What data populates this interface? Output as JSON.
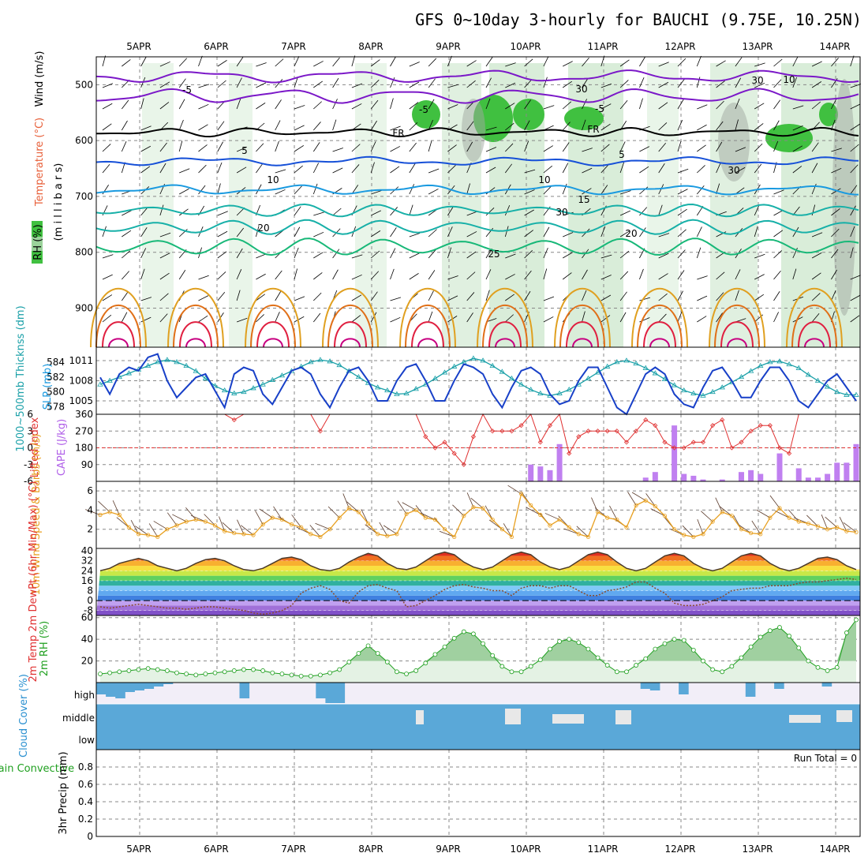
{
  "title": "GFS 0~10day 3-hourly for BAUCHI (9.75E, 10.25N)",
  "run_total": "Run Total = 0",
  "colors": {
    "purple": "#7b18c8",
    "black": "#000000",
    "blue": "#1650d8",
    "skyblue": "#1a9ae0",
    "teal": "#17b0a8",
    "green": "#18b878",
    "orange": "#e0a020",
    "darkorange": "#e07018",
    "red": "#e02040",
    "magenta": "#c80080",
    "rh_light": "#e4f2e4",
    "rh_mid": "#b0d8b0",
    "rh_dark": "#40c040"
  },
  "chart_data": [
    {
      "panel": "upper-air",
      "type": "contour",
      "x_dates": [
        "5APR",
        "6APR",
        "7APR",
        "8APR",
        "9APR",
        "10APR",
        "11APR",
        "12APR",
        "13APR",
        "14APR"
      ],
      "yticks": [
        500,
        600,
        700,
        800,
        900
      ],
      "ylim": [
        450,
        970
      ],
      "ylabel_text": "(m i l l i b a r s)",
      "legend_wind": "Wind (m/s)",
      "legend_temp": "Temperature (°C)",
      "legend_rh": "RH (%)",
      "contour_labels": [
        {
          "text": "-5",
          "color": "purple"
        },
        {
          "text": "-5",
          "color": "purple"
        },
        {
          "text": "-5",
          "color": "purple"
        },
        {
          "text": "FR",
          "color": "black"
        },
        {
          "text": "FR",
          "color": "black"
        },
        {
          "text": "5",
          "color": "blue"
        },
        {
          "text": "5",
          "color": "blue"
        },
        {
          "text": "10",
          "color": "skyblue"
        },
        {
          "text": "10",
          "color": "skyblue"
        },
        {
          "text": "15",
          "color": "teal"
        },
        {
          "text": "20",
          "color": "green"
        },
        {
          "text": "20",
          "color": "green"
        },
        {
          "text": "25",
          "color": "orange"
        },
        {
          "text": "30",
          "color": "gray"
        },
        {
          "text": "30",
          "color": "gray"
        },
        {
          "text": "30",
          "color": "gray"
        },
        {
          "text": "30",
          "color": "gray"
        },
        {
          "text": "10",
          "color": "gray"
        }
      ]
    },
    {
      "panel": "slp-thickness",
      "type": "line",
      "ylabel_left": "1000~500mb Thicknss (dm)",
      "ylabel_right": "SLP (mb)",
      "yticks_left": [
        578,
        580,
        582,
        584
      ],
      "yticks_right": [
        1005,
        1008,
        1011
      ],
      "ylim_thickness": [
        577,
        586
      ],
      "ylim_slp": [
        1003,
        1013
      ],
      "thickness": [
        581,
        581.5,
        582,
        582.5,
        583,
        583.5,
        584,
        584.3,
        584,
        583.5,
        582.8,
        581.8,
        580.8,
        580.2,
        579.8,
        580,
        580.5,
        581,
        581.6,
        582.2,
        582.8,
        583.4,
        584,
        584.3,
        584.1,
        583.6,
        582.8,
        582,
        581.2,
        580.6,
        580.2,
        579.7,
        579.8,
        580.4,
        581,
        581.8,
        582.6,
        583.4,
        584,
        584.5,
        584.2,
        583.5,
        582.7,
        581.8,
        581,
        580.3,
        579.8,
        579.5,
        579.8,
        580.3,
        581,
        581.8,
        582.6,
        583.4,
        584,
        584.2,
        583.8,
        583.2,
        582.5,
        581.7,
        580.9,
        580.2,
        579.8,
        579.5,
        580,
        580.6,
        581.3,
        582,
        582.8,
        583.5,
        584,
        584.1,
        583.7,
        583.2,
        582.3,
        581.5,
        580.7,
        580,
        579.6,
        579.6
      ],
      "slp": [
        1008.5,
        1006,
        1009,
        1010,
        1009.5,
        1011.5,
        1012,
        1008,
        1005.5,
        1007,
        1008.5,
        1009,
        1006.5,
        1004,
        1009,
        1010,
        1009.5,
        1006,
        1004.5,
        1007,
        1009.5,
        1010,
        1009,
        1006,
        1004,
        1007,
        1009.5,
        1010,
        1008,
        1005,
        1005,
        1008,
        1010,
        1010.5,
        1008,
        1005,
        1005,
        1008,
        1010.5,
        1010,
        1009,
        1006,
        1004,
        1007,
        1009.5,
        1010,
        1009,
        1006,
        1004.5,
        1005,
        1008,
        1010,
        1010,
        1007,
        1004,
        1003,
        1006,
        1009,
        1010,
        1009,
        1006,
        1004.5,
        1004,
        1007,
        1009.5,
        1010,
        1008,
        1005.5,
        1005.5,
        1008,
        1010,
        1010,
        1008,
        1005,
        1004,
        1006,
        1008,
        1009,
        1007,
        1005
      ]
    },
    {
      "panel": "li-cape",
      "type": "bar+line",
      "ylabel_left": "Lifted Index",
      "ylabel_right": "CAPE (J/kg)",
      "yticks_li": [
        6,
        3,
        0,
        -3,
        -6
      ],
      "yticks_cape": [
        90,
        180,
        270,
        360
      ],
      "ylim_cape": [
        0,
        360
      ],
      "lifted_index": [
        6,
        6,
        6,
        6,
        6,
        6,
        6,
        6,
        6,
        6,
        6,
        6,
        6,
        6,
        5,
        6,
        6,
        6,
        6,
        6,
        6,
        6,
        6,
        3,
        6,
        6,
        6,
        6,
        6,
        6,
        6,
        6,
        6,
        6,
        2,
        0,
        1,
        -1,
        -3,
        2,
        6,
        3,
        3,
        3,
        4,
        6,
        1,
        4,
        6,
        -1,
        2,
        3,
        3,
        3,
        3,
        1,
        3,
        5,
        4,
        1,
        0,
        0,
        1,
        1,
        4,
        5,
        0,
        1,
        3,
        4,
        4,
        0,
        -1,
        6,
        6,
        6,
        6,
        6,
        6,
        6
      ],
      "cape": [
        0,
        0,
        0,
        0,
        0,
        0,
        0,
        0,
        0,
        0,
        0,
        0,
        0,
        0,
        0,
        0,
        0,
        0,
        0,
        0,
        0,
        0,
        0,
        0,
        0,
        0,
        0,
        0,
        0,
        0,
        0,
        0,
        0,
        0,
        0,
        0,
        0,
        0,
        0,
        0,
        0,
        0,
        0,
        0,
        0,
        90,
        80,
        60,
        200,
        0,
        0,
        0,
        0,
        0,
        0,
        0,
        0,
        20,
        50,
        0,
        300,
        40,
        30,
        10,
        0,
        10,
        0,
        50,
        60,
        40,
        0,
        150,
        0,
        70,
        20,
        20,
        40,
        100,
        100,
        200
      ],
      "li_dashed_value": 0
    },
    {
      "panel": "wind10",
      "type": "line",
      "ylabel": "10m Wind Speed & Barbs (m/s)",
      "yticks": [
        2,
        4,
        6
      ],
      "ylim": [
        0,
        7
      ],
      "speed": [
        3.5,
        3.8,
        3.5,
        2.2,
        1.5,
        1.4,
        1.2,
        2.0,
        2.4,
        2.8,
        3.0,
        2.8,
        2.4,
        1.8,
        1.6,
        1.5,
        1.4,
        2.5,
        3.2,
        3.0,
        2.5,
        2.2,
        1.5,
        1.2,
        2.0,
        3.2,
        4.2,
        3.8,
        2.6,
        1.5,
        1.3,
        1.5,
        3.6,
        4.0,
        3.2,
        3.0,
        2.0,
        1.2,
        3.4,
        4.3,
        4.2,
        3.0,
        2.0,
        1.2,
        5.7,
        4.5,
        3.5,
        2.4,
        3.0,
        2.2,
        1.5,
        1.2,
        3.8,
        3.2,
        3.0,
        2.2,
        4.5,
        5.0,
        4.4,
        3.4,
        2.0,
        1.4,
        1.2,
        1.5,
        2.8,
        3.8,
        3.4,
        2.0,
        1.6,
        1.5,
        3.2,
        4.2,
        3.2,
        2.8,
        2.6,
        2.3,
        2.0,
        2.2,
        1.8,
        1.7
      ]
    },
    {
      "panel": "temp2m",
      "type": "area+line",
      "ylabel": "2m Temp 2m DewPt (6hr Min/Max) (°C)",
      "yticks": [
        -8,
        0,
        8,
        16,
        24,
        32,
        40
      ],
      "ylim": [
        -12,
        42
      ],
      "temp": [
        24,
        26,
        30,
        32,
        34,
        32,
        28,
        26,
        24,
        26,
        30,
        33,
        34,
        32,
        28,
        25,
        24,
        26,
        30,
        34,
        35,
        33,
        28,
        25,
        24,
        26,
        31,
        35,
        38,
        36,
        30,
        26,
        25,
        27,
        32,
        37,
        39,
        37,
        31,
        27,
        25,
        27,
        32,
        37,
        39,
        37,
        31,
        27,
        25,
        27,
        32,
        37,
        39,
        37,
        31,
        26,
        24,
        26,
        31,
        36,
        38,
        36,
        30,
        26,
        24,
        26,
        31,
        36,
        38,
        36,
        30,
        26,
        24,
        26,
        30,
        34,
        35,
        33,
        28,
        25
      ],
      "dewpt": [
        -5,
        -6,
        -5,
        -4,
        -3,
        -4,
        -5,
        -6,
        -6,
        -7,
        -6,
        -5,
        -5,
        -6,
        -7,
        -8,
        -10,
        -11,
        -10,
        -8,
        -4,
        6,
        10,
        12,
        9,
        0,
        -2,
        7,
        12,
        13,
        10,
        8,
        -5,
        -4,
        0,
        4,
        9,
        12,
        13,
        11,
        10,
        8,
        8,
        4,
        10,
        12,
        12,
        10,
        12,
        12,
        8,
        4,
        4,
        8,
        9,
        11,
        15,
        15,
        10,
        6,
        -2,
        -4,
        -4,
        -3,
        0,
        3,
        8,
        9,
        10,
        10,
        12,
        12,
        12,
        14,
        15,
        15,
        16,
        17,
        18,
        17
      ]
    },
    {
      "panel": "rh2m",
      "type": "area",
      "ylabel": "2m RH (%)",
      "yticks": [
        20,
        40,
        60
      ],
      "ylim": [
        0,
        62
      ],
      "rh": [
        8,
        9,
        10,
        11,
        12,
        13,
        12,
        11,
        9,
        8,
        7,
        8,
        9,
        10,
        11,
        12,
        12,
        11,
        9,
        8,
        7,
        6,
        6,
        7,
        9,
        12,
        19,
        27,
        34,
        27,
        19,
        10,
        8,
        11,
        18,
        26,
        33,
        41,
        47,
        45,
        36,
        25,
        15,
        10,
        10,
        15,
        21,
        31,
        38,
        40,
        37,
        31,
        23,
        16,
        10,
        10,
        16,
        22,
        31,
        36,
        40,
        39,
        30,
        20,
        12,
        10,
        15,
        23,
        33,
        42,
        48,
        51,
        43,
        32,
        20,
        14,
        11,
        14,
        46,
        58
      ]
    },
    {
      "panel": "cloud",
      "type": "heatmap",
      "ylabel": "Cloud Cover (%)",
      "rows": [
        "high",
        "middle",
        "low"
      ]
    },
    {
      "panel": "precip",
      "type": "bar",
      "ylabel_left": "Total / Rain Convective",
      "ylabel_right": "3hr Precip (mm)",
      "yticks": [
        0,
        0.2,
        0.4,
        0.6,
        0.8
      ],
      "ylim": [
        0,
        1.0
      ],
      "values": []
    }
  ]
}
